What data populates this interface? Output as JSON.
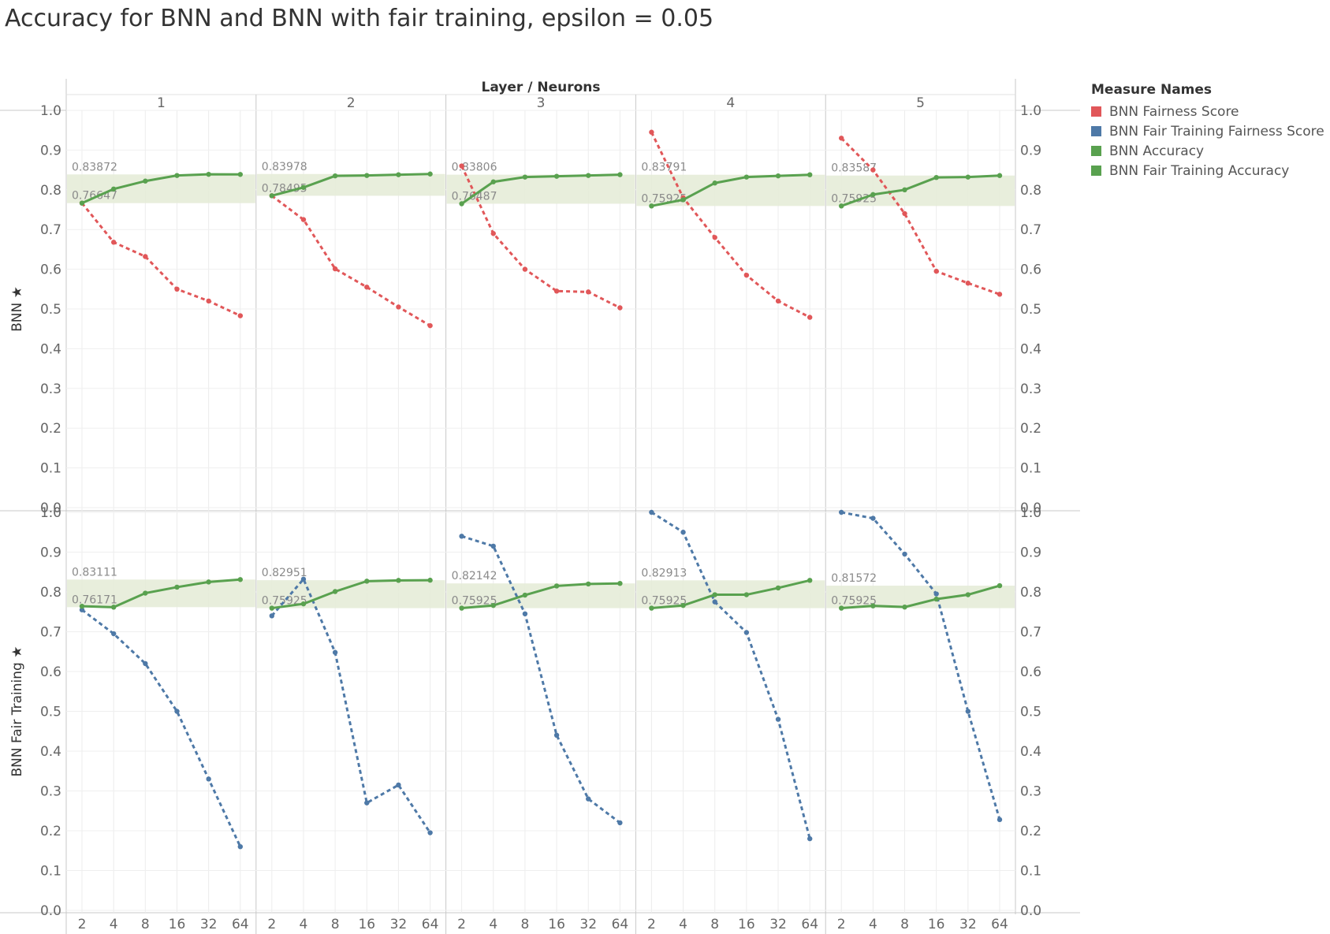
{
  "title": "Accuracy for BNN and BNN with fair training, epsilon = 0.05",
  "legend": {
    "title": "Measure Names",
    "items": [
      {
        "label": "BNN Fairness Score",
        "color": "#e15759"
      },
      {
        "label": "BNN Fair Training Fairness Score",
        "color": "#4e79a7"
      },
      {
        "label": "BNN Accuracy",
        "color": "#59a14f"
      },
      {
        "label": "BNN Fair Training Accuracy",
        "color": "#59a14f"
      }
    ]
  },
  "chart_data": {
    "type": "line",
    "title": "Accuracy for BNN and BNN with fair training, epsilon = 0.05",
    "column_header": "Layer / Neurons",
    "columns": [
      "1",
      "2",
      "3",
      "4",
      "5"
    ],
    "rows": [
      {
        "label": "BNN",
        "fairness_color": "#e15759"
      },
      {
        "label": "BNN Fair Training",
        "fairness_color": "#4e79a7"
      }
    ],
    "x_categories": [
      "2",
      "4",
      "8",
      "16",
      "32",
      "64"
    ],
    "y_ticks": [
      "1.0",
      "0.9",
      "0.8",
      "0.7",
      "0.6",
      "0.5",
      "0.4",
      "0.3",
      "0.2",
      "0.1",
      "0.0"
    ],
    "ylim": [
      0.0,
      1.0
    ],
    "grid": true,
    "accuracy_color": "#59a14f",
    "band_color": "#e6ecd8",
    "panels": [
      {
        "row": 0,
        "col": 0,
        "accuracy": [
          0.7665,
          0.802,
          0.822,
          0.836,
          0.839,
          0.8387
        ],
        "fairness": [
          0.7665,
          0.668,
          0.632,
          0.55,
          0.52,
          0.483
        ],
        "band_min": 0.76647,
        "band_max": 0.83872,
        "band_min_label": "0.76647",
        "band_max_label": "0.83872"
      },
      {
        "row": 0,
        "col": 1,
        "accuracy": [
          0.785,
          0.806,
          0.835,
          0.836,
          0.838,
          0.8398
        ],
        "fairness": [
          0.785,
          0.725,
          0.601,
          0.555,
          0.505,
          0.458
        ],
        "band_min": 0.78495,
        "band_max": 0.83978,
        "band_min_label": "0.78495",
        "band_max_label": "0.83978"
      },
      {
        "row": 0,
        "col": 2,
        "accuracy": [
          0.7649,
          0.82,
          0.832,
          0.834,
          0.836,
          0.8381
        ],
        "fairness": [
          0.86,
          0.69,
          0.6,
          0.545,
          0.543,
          0.503
        ],
        "band_min": 0.76487,
        "band_max": 0.83806,
        "band_min_label": "0.76487",
        "band_max_label": "0.83806"
      },
      {
        "row": 0,
        "col": 3,
        "accuracy": [
          0.7593,
          0.775,
          0.817,
          0.832,
          0.835,
          0.8379
        ],
        "fairness": [
          0.945,
          0.78,
          0.68,
          0.585,
          0.52,
          0.479
        ],
        "band_min": 0.75925,
        "band_max": 0.83791,
        "band_min_label": "0.75925",
        "band_max_label": "0.83791"
      },
      {
        "row": 0,
        "col": 4,
        "accuracy": [
          0.7593,
          0.788,
          0.8,
          0.831,
          0.832,
          0.8359
        ],
        "fairness": [
          0.93,
          0.85,
          0.74,
          0.595,
          0.565,
          0.537
        ],
        "band_min": 0.75925,
        "band_max": 0.83587,
        "band_min_label": "0.75925",
        "band_max_label": "0.83587"
      },
      {
        "row": 1,
        "col": 0,
        "accuracy": [
          0.764,
          0.7617,
          0.797,
          0.812,
          0.825,
          0.8311
        ],
        "fairness": [
          0.755,
          0.695,
          0.62,
          0.5,
          0.33,
          0.16
        ],
        "band_min": 0.76171,
        "band_max": 0.83111,
        "band_min_label": "0.76171",
        "band_max_label": "0.83111"
      },
      {
        "row": 1,
        "col": 1,
        "accuracy": [
          0.7593,
          0.77,
          0.801,
          0.827,
          0.829,
          0.8295
        ],
        "fairness": [
          0.74,
          0.832,
          0.648,
          0.27,
          0.315,
          0.195
        ],
        "band_min": 0.75925,
        "band_max": 0.82951,
        "band_min_label": "0.75925",
        "band_max_label": "0.82951"
      },
      {
        "row": 1,
        "col": 2,
        "accuracy": [
          0.7593,
          0.766,
          0.792,
          0.815,
          0.82,
          0.8214
        ],
        "fairness": [
          0.94,
          0.915,
          0.745,
          0.44,
          0.28,
          0.22
        ],
        "band_min": 0.75925,
        "band_max": 0.82142,
        "band_min_label": "0.75925",
        "band_max_label": "0.82142"
      },
      {
        "row": 1,
        "col": 3,
        "accuracy": [
          0.7593,
          0.766,
          0.793,
          0.793,
          0.81,
          0.8291
        ],
        "fairness": [
          1.025,
          0.95,
          0.775,
          0.698,
          0.48,
          0.18
        ],
        "band_min": 0.75925,
        "band_max": 0.82913,
        "band_min_label": "0.75925",
        "band_max_label": "0.82913"
      },
      {
        "row": 1,
        "col": 4,
        "accuracy": [
          0.7593,
          0.765,
          0.762,
          0.782,
          0.793,
          0.8157
        ],
        "fairness": [
          1.02,
          0.985,
          0.895,
          0.795,
          0.5,
          0.228
        ],
        "band_min": 0.75925,
        "band_max": 0.81572,
        "band_min_label": "0.75925",
        "band_max_label": "0.81572"
      }
    ]
  }
}
